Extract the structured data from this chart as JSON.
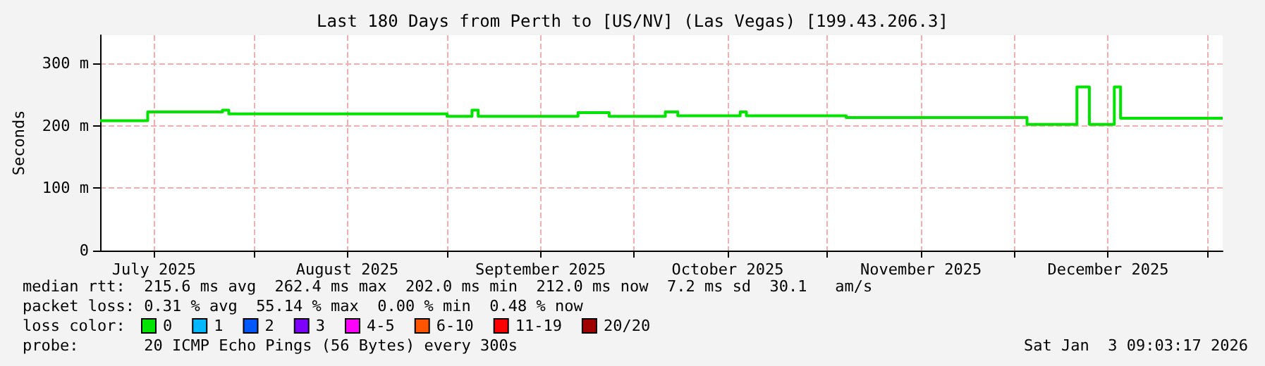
{
  "chart_data": {
    "type": "step",
    "title": "Last 180 Days from Perth to [US/NV] (Las Vegas) [199.43.206.3]",
    "ylabel": "Seconds",
    "x": [
      "2025-07-07T09:00",
      "2025-07-15",
      "2025-07-27",
      "2025-07-28",
      "2025-09-01",
      "2025-09-05",
      "2025-09-06",
      "2025-09-22",
      "2025-09-27",
      "2025-10-06",
      "2025-10-08",
      "2025-10-18",
      "2025-10-19",
      "2025-11-04",
      "2025-12-03",
      "2025-12-11",
      "2025-12-13",
      "2025-12-17",
      "2025-12-18",
      "2026-01-03T09:00"
    ],
    "series": [
      {
        "name": "0",
        "color": "#00e400",
        "values": [
          208,
          222,
          225,
          219,
          215,
          225,
          215,
          221,
          215,
          222,
          216,
          222,
          216,
          213,
          202,
          262,
          202,
          262,
          212,
          212
        ]
      },
      {
        "name": "1",
        "color": "#00b8ff",
        "values": [
          null,
          null,
          null,
          null,
          null,
          null,
          null,
          null,
          null,
          null,
          null,
          null,
          null,
          null,
          null,
          null,
          null,
          null,
          null,
          null
        ]
      },
      {
        "name": "2",
        "color": "#0059ff",
        "values": [
          null,
          null,
          null,
          null,
          null,
          null,
          null,
          null,
          null,
          null,
          null,
          null,
          null,
          null,
          null,
          null,
          null,
          null,
          null,
          null
        ]
      },
      {
        "name": "3",
        "color": "#7e00ff",
        "values": [
          null,
          null,
          null,
          null,
          null,
          null,
          null,
          null,
          null,
          null,
          null,
          null,
          null,
          null,
          null,
          null,
          null,
          null,
          null,
          null
        ]
      },
      {
        "name": "4-5",
        "color": "#ff00ff",
        "values": [
          null,
          null,
          null,
          null,
          null,
          null,
          null,
          null,
          null,
          null,
          null,
          null,
          null,
          null,
          null,
          null,
          null,
          null,
          null,
          null
        ]
      },
      {
        "name": "6-10",
        "color": "#ff5500",
        "values": [
          null,
          null,
          null,
          null,
          null,
          null,
          null,
          null,
          null,
          null,
          null,
          null,
          null,
          null,
          null,
          null,
          null,
          null,
          null,
          null
        ]
      },
      {
        "name": "11-19",
        "color": "#ff0000",
        "values": [
          null,
          null,
          null,
          null,
          null,
          null,
          null,
          null,
          null,
          null,
          null,
          null,
          null,
          null,
          null,
          null,
          null,
          null,
          null,
          null
        ]
      },
      {
        "name": "20/20",
        "color": "#a10000",
        "values": [
          null,
          null,
          null,
          null,
          null,
          null,
          null,
          null,
          null,
          null,
          null,
          null,
          null,
          null,
          null,
          null,
          null,
          null,
          null,
          null
        ]
      }
    ],
    "xlim": [
      "2025-07-07T09:00",
      "2026-01-03T09:00"
    ],
    "xticks": [
      {
        "value": "2025-07-16",
        "label": "July 2025"
      },
      {
        "value": "2025-08-01",
        "label": null
      },
      {
        "value": "2025-08-16",
        "label": "August 2025"
      },
      {
        "value": "2025-09-01",
        "label": null
      },
      {
        "value": "2025-09-16",
        "label": "September 2025"
      },
      {
        "value": "2025-10-01",
        "label": null
      },
      {
        "value": "2025-10-16",
        "label": "October 2025"
      },
      {
        "value": "2025-11-01",
        "label": null
      },
      {
        "value": "2025-11-16",
        "label": "November 2025"
      },
      {
        "value": "2025-12-01",
        "label": null
      },
      {
        "value": "2025-12-16",
        "label": "December 2025"
      },
      {
        "value": "2026-01-01",
        "label": null
      }
    ],
    "ylim": [
      0,
      345
    ],
    "yticks": [
      0,
      {
        "value": 100,
        "label": "100 m"
      },
      {
        "value": 200,
        "label": "200 m"
      },
      {
        "value": 300,
        "label": "300 m"
      }
    ],
    "grid": true,
    "legend": "bottom left",
    "marker": "none",
    "line_style": "solid",
    "annotations": [
      "median rtt:  215.6 ms avg  262.4 ms max  202.0 ms min  212.0 ms now  7.2 ms sd  30.1   am/s",
      "packet loss: 0.31 % avg  55.14 % max  0.00 % min  0.48 % now",
      "loss color:",
      "probe:       20 ICMP Echo Pings (56 Bytes) every 300s",
      "Sat Jan  3 09:03:17 2026"
    ]
  }
}
